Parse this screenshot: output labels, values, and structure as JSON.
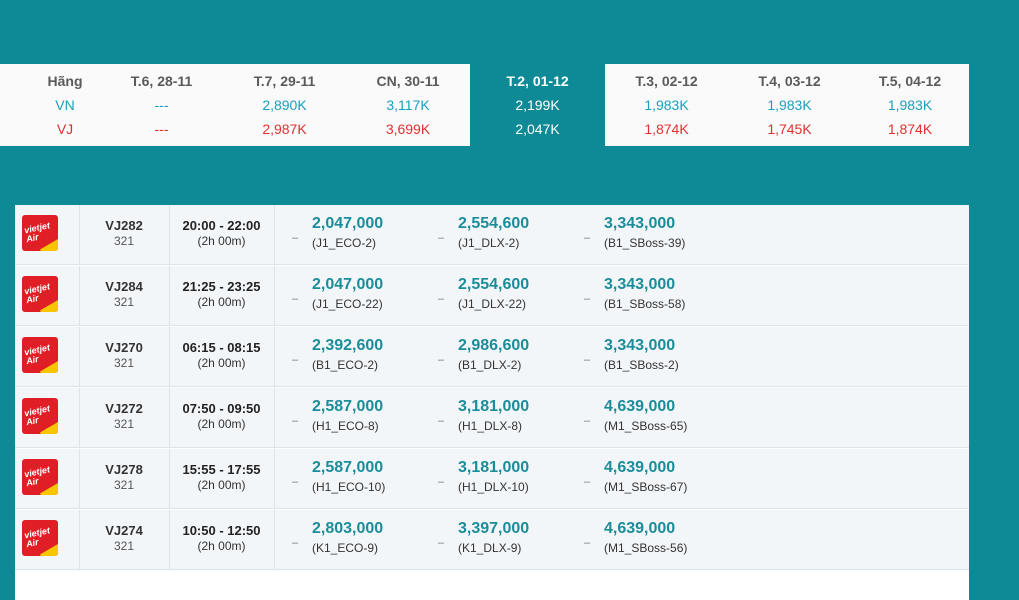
{
  "date_grid": {
    "airline_header": "Hãng",
    "airlines": [
      "VN",
      "VJ"
    ],
    "dates": [
      {
        "label": "T.6, 28-11",
        "vn": "---",
        "vj": "---",
        "selected": false
      },
      {
        "label": "T.7, 29-11",
        "vn": "2,890K",
        "vj": "2,987K",
        "selected": false
      },
      {
        "label": "CN, 30-11",
        "vn": "3,117K",
        "vj": "3,699K",
        "selected": false
      },
      {
        "label": "T.2, 01-12",
        "vn": "2,199K",
        "vj": "2,047K",
        "selected": true
      },
      {
        "label": "T.3, 02-12",
        "vn": "1,983K",
        "vj": "1,874K",
        "selected": false
      },
      {
        "label": "T.4, 03-12",
        "vn": "1,983K",
        "vj": "1,745K",
        "selected": false
      },
      {
        "label": "T.5, 04-12",
        "vn": "1,983K",
        "vj": "1,874K",
        "selected": false
      }
    ]
  },
  "flights": [
    {
      "logo_icon": "vietjet-air-logo",
      "logo_text": "vietjet Air",
      "code": "VJ282",
      "aircraft": "321",
      "time": "20:00 - 22:00",
      "duration": "(2h 00m)",
      "fares": [
        {
          "dash": "–",
          "price": "2,047,000",
          "class": "(J1_ECO-2)"
        },
        {
          "dash": "–",
          "price": "2,554,600",
          "class": "(J1_DLX-2)"
        },
        {
          "dash": "–",
          "price": "3,343,000",
          "class": "(B1_SBoss-39)"
        }
      ]
    },
    {
      "logo_icon": "vietjet-air-logo",
      "logo_text": "vietjet Air",
      "code": "VJ284",
      "aircraft": "321",
      "time": "21:25 - 23:25",
      "duration": "(2h 00m)",
      "fares": [
        {
          "dash": "–",
          "price": "2,047,000",
          "class": "(J1_ECO-22)"
        },
        {
          "dash": "–",
          "price": "2,554,600",
          "class": "(J1_DLX-22)"
        },
        {
          "dash": "–",
          "price": "3,343,000",
          "class": "(B1_SBoss-58)"
        }
      ]
    },
    {
      "logo_icon": "vietjet-air-logo",
      "logo_text": "vietjet Air",
      "code": "VJ270",
      "aircraft": "321",
      "time": "06:15 - 08:15",
      "duration": "(2h 00m)",
      "fares": [
        {
          "dash": "–",
          "price": "2,392,600",
          "class": "(B1_ECO-2)"
        },
        {
          "dash": "–",
          "price": "2,986,600",
          "class": "(B1_DLX-2)"
        },
        {
          "dash": "–",
          "price": "3,343,000",
          "class": "(B1_SBoss-2)"
        }
      ]
    },
    {
      "logo_icon": "vietjet-air-logo",
      "logo_text": "vietjet Air",
      "code": "VJ272",
      "aircraft": "321",
      "time": "07:50 - 09:50",
      "duration": "(2h 00m)",
      "fares": [
        {
          "dash": "–",
          "price": "2,587,000",
          "class": "(H1_ECO-8)"
        },
        {
          "dash": "–",
          "price": "3,181,000",
          "class": "(H1_DLX-8)"
        },
        {
          "dash": "–",
          "price": "4,639,000",
          "class": "(M1_SBoss-65)"
        }
      ]
    },
    {
      "logo_icon": "vietjet-air-logo",
      "logo_text": "vietjet Air",
      "code": "VJ278",
      "aircraft": "321",
      "time": "15:55 - 17:55",
      "duration": "(2h 00m)",
      "fares": [
        {
          "dash": "–",
          "price": "2,587,000",
          "class": "(H1_ECO-10)"
        },
        {
          "dash": "–",
          "price": "3,181,000",
          "class": "(H1_DLX-10)"
        },
        {
          "dash": "–",
          "price": "4,639,000",
          "class": "(M1_SBoss-67)"
        }
      ]
    },
    {
      "logo_icon": "vietjet-air-logo",
      "logo_text": "vietjet Air",
      "code": "VJ274",
      "aircraft": "321",
      "time": "10:50 - 12:50",
      "duration": "(2h 00m)",
      "fares": [
        {
          "dash": "–",
          "price": "2,803,000",
          "class": "(K1_ECO-9)"
        },
        {
          "dash": "–",
          "price": "3,397,000",
          "class": "(K1_DLX-9)"
        },
        {
          "dash": "–",
          "price": "4,639,000",
          "class": "(M1_SBoss-56)"
        }
      ]
    }
  ],
  "colors": {
    "background": "#0e8a96",
    "price_teal": "#1b8d9a",
    "vn_blue": "#1a9fbd",
    "vj_red": "#e23030",
    "vietjet_red": "#e01e26",
    "vietjet_yellow": "#f7c600"
  }
}
